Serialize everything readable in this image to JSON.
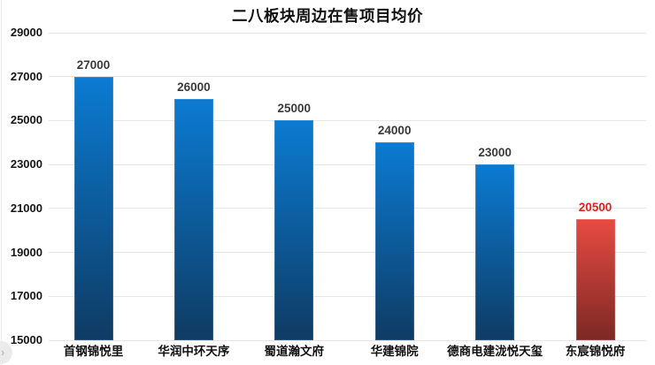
{
  "title": "二八板块周边在售项目均价",
  "chart_data": {
    "type": "bar",
    "title": "二八板块周边在售项目均价",
    "categories": [
      "首钢锦悦里",
      "华润中环天序",
      "蜀道瀚文府",
      "华建锦院",
      "德商电建泷悦天玺",
      "东宸锦悦府"
    ],
    "values": [
      27000,
      26000,
      25000,
      24000,
      23000,
      20500
    ],
    "data_labels": [
      "27000",
      "26000",
      "25000",
      "24000",
      "23000",
      "20500"
    ],
    "highlight_index": 5,
    "xlabel": "",
    "ylabel": "",
    "ylim": [
      15000,
      29000
    ],
    "yticks": [
      15000,
      17000,
      19000,
      21000,
      23000,
      25000,
      27000,
      29000
    ],
    "grid": true,
    "legend": false,
    "colors": {
      "bar_top": "#0b7bd2",
      "bar_bottom": "#0e3b63",
      "highlight_bar_top": "#e84a42",
      "highlight_bar_bottom": "#7c2824",
      "value_label": "#3a3a3a",
      "highlight_value_label": "#e51f1c",
      "gridline": "#e7e7e7"
    }
  },
  "corner_toggle": {
    "icon": "chevron-right",
    "glyph": "›"
  }
}
